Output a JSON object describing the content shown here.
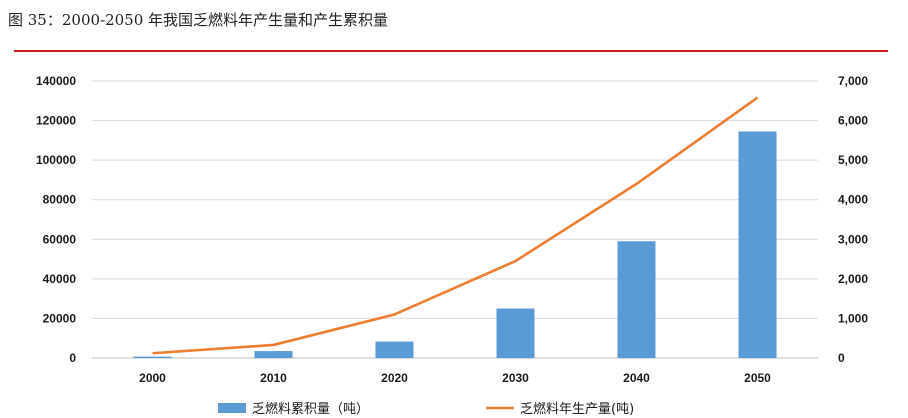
{
  "figure_title": "图 35：2000-2050 年我国乏燃料年产生量和产生累积量",
  "colors": {
    "rule": "#cc1f1f",
    "bar": "#5b9bd5",
    "line": "#ed7d31",
    "grid": "#d9d9d9"
  },
  "chart_data": {
    "type": "bar",
    "categories": [
      "2000",
      "2010",
      "2020",
      "2030",
      "2040",
      "2050"
    ],
    "series": [
      {
        "name": "乏燃料累积量（吨）",
        "type": "bar",
        "axis": "left",
        "values": [
          700,
          3500,
          8300,
          25000,
          59000,
          114500
        ]
      },
      {
        "name": "乏燃料年生产量(吨)",
        "type": "line",
        "axis": "right",
        "values": [
          120,
          330,
          1100,
          2450,
          4400,
          6580
        ]
      }
    ],
    "y_left": {
      "min": 0,
      "max": 140000,
      "ticks": [
        "0",
        "20000",
        "40000",
        "60000",
        "80000",
        "100000",
        "120000",
        "140000"
      ]
    },
    "y_right": {
      "min": 0,
      "max": 7000,
      "ticks": [
        "0",
        "1,000",
        "2,000",
        "3,000",
        "4,000",
        "5,000",
        "6,000",
        "7,000"
      ]
    },
    "grid": true,
    "legend": "bottom"
  }
}
